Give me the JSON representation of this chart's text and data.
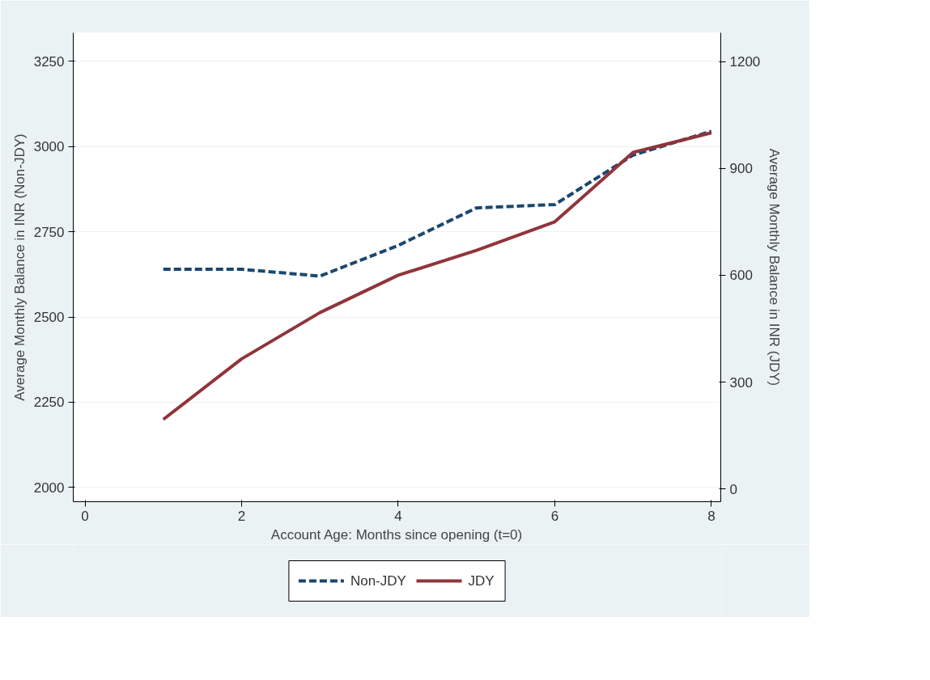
{
  "chart_data": {
    "type": "line",
    "xlabel": "Account Age: Months since opening (t=0)",
    "ylabel": "Average Monthly Balance in INR (Non-JDY)",
    "y2label": "Average Monthly Balance in INR (JDY)",
    "x": [
      1,
      2,
      3,
      4,
      5,
      6,
      7,
      8
    ],
    "series": [
      {
        "name": "Non-JDY",
        "color": "#1a476f",
        "line_style": "dashed",
        "values": [
          2640,
          2640,
          2620,
          2710,
          2820,
          2830,
          2975,
          3045
        ]
      },
      {
        "name": "JDY",
        "color": "#90353b",
        "line_style": "solid",
        "axis": "y2",
        "values": [
          195,
          365,
          495,
          600,
          670,
          750,
          945,
          1000
        ]
      }
    ],
    "xlim": [
      -0.15,
      8.12
    ],
    "xticks": [
      0,
      2,
      4,
      6,
      8
    ],
    "ylim": [
      1958,
      3334
    ],
    "yticks": [
      2000,
      2250,
      2500,
      2750,
      3000,
      3250
    ],
    "y2lim": [
      -36,
      1281
    ],
    "y2ticks": [
      0,
      300,
      600,
      900,
      1200
    ],
    "grid": "y",
    "legend": "bottom",
    "marker": "none"
  }
}
